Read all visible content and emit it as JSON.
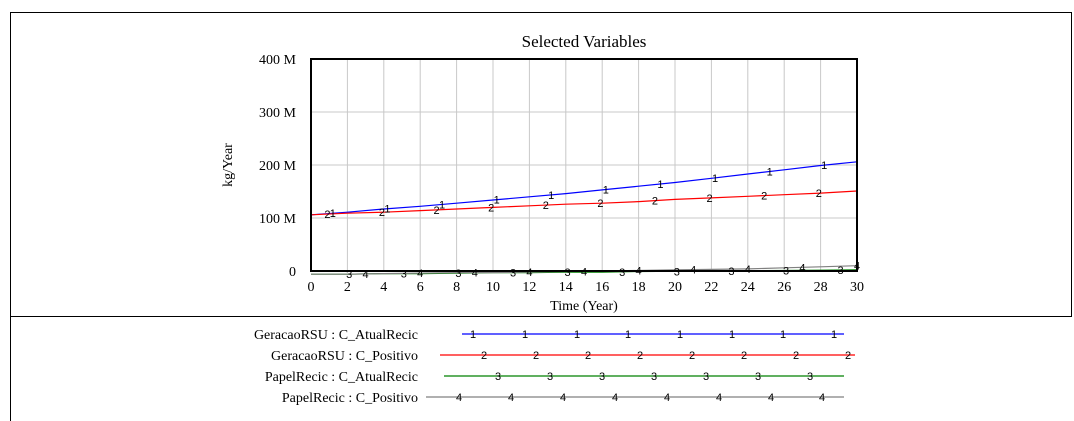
{
  "chart_data": {
    "type": "line",
    "title": "Selected Variables",
    "xlabel": "Time (Year)",
    "ylabel": "kg/Year",
    "xlim": [
      0,
      30
    ],
    "ylim": [
      0,
      400000000
    ],
    "x_ticks": [
      0,
      2,
      4,
      6,
      8,
      10,
      12,
      14,
      16,
      18,
      20,
      22,
      24,
      26,
      28,
      30
    ],
    "y_ticks": [
      0,
      100000000,
      200000000,
      300000000,
      400000000
    ],
    "y_tick_labels": [
      "0",
      "100 M",
      "200 M",
      "300 M",
      "400 M"
    ],
    "grid": true,
    "legend_position": "bottom",
    "series": [
      {
        "name": "GeracaoRSU : C_AtualRecic",
        "marker": "1",
        "color": "#0000ff",
        "x": [
          0,
          2,
          4,
          6,
          8,
          10,
          12,
          14,
          16,
          18,
          20,
          22,
          24,
          26,
          28,
          30
        ],
        "y": [
          106000000,
          111000000,
          117000000,
          122000000,
          128000000,
          134000000,
          140000000,
          146000000,
          153000000,
          160000000,
          167000000,
          175000000,
          183000000,
          191000000,
          199000000,
          206000000
        ]
      },
      {
        "name": "GeracaoRSU : C_Positivo",
        "marker": "2",
        "color": "#ff0000",
        "x": [
          0,
          2,
          4,
          6,
          8,
          10,
          12,
          14,
          16,
          18,
          20,
          22,
          24,
          26,
          28,
          30
        ],
        "y": [
          106000000,
          109000000,
          111000000,
          114000000,
          117000000,
          120000000,
          123000000,
          126000000,
          128000000,
          131000000,
          135000000,
          138000000,
          141000000,
          144000000,
          147000000,
          151000000
        ]
      },
      {
        "name": "PapelRecic : C_AtualRecic",
        "marker": "3",
        "color": "#008000",
        "x": [
          0,
          2,
          4,
          6,
          8,
          10,
          12,
          14,
          16,
          18,
          20,
          22,
          24,
          26,
          28,
          30
        ],
        "y": [
          -6000000,
          -6000000,
          -5000000,
          -5000000,
          -4000000,
          -3000000,
          -3000000,
          -2000000,
          -2000000,
          -1000000,
          -500000,
          0,
          500000,
          1000000,
          1500000,
          2000000
        ]
      },
      {
        "name": "PapelRecic : C_Positivo",
        "marker": "4",
        "color": "#808080",
        "x": [
          0,
          2,
          4,
          6,
          8,
          10,
          12,
          14,
          16,
          18,
          20,
          22,
          24,
          26,
          28,
          30
        ],
        "y": [
          -6000000,
          -6000000,
          -5000000,
          -4000000,
          -3000000,
          -3000000,
          -2000000,
          -1000000,
          0,
          1000000,
          2000000,
          3000000,
          4000000,
          6000000,
          8000000,
          10000000
        ]
      }
    ]
  }
}
